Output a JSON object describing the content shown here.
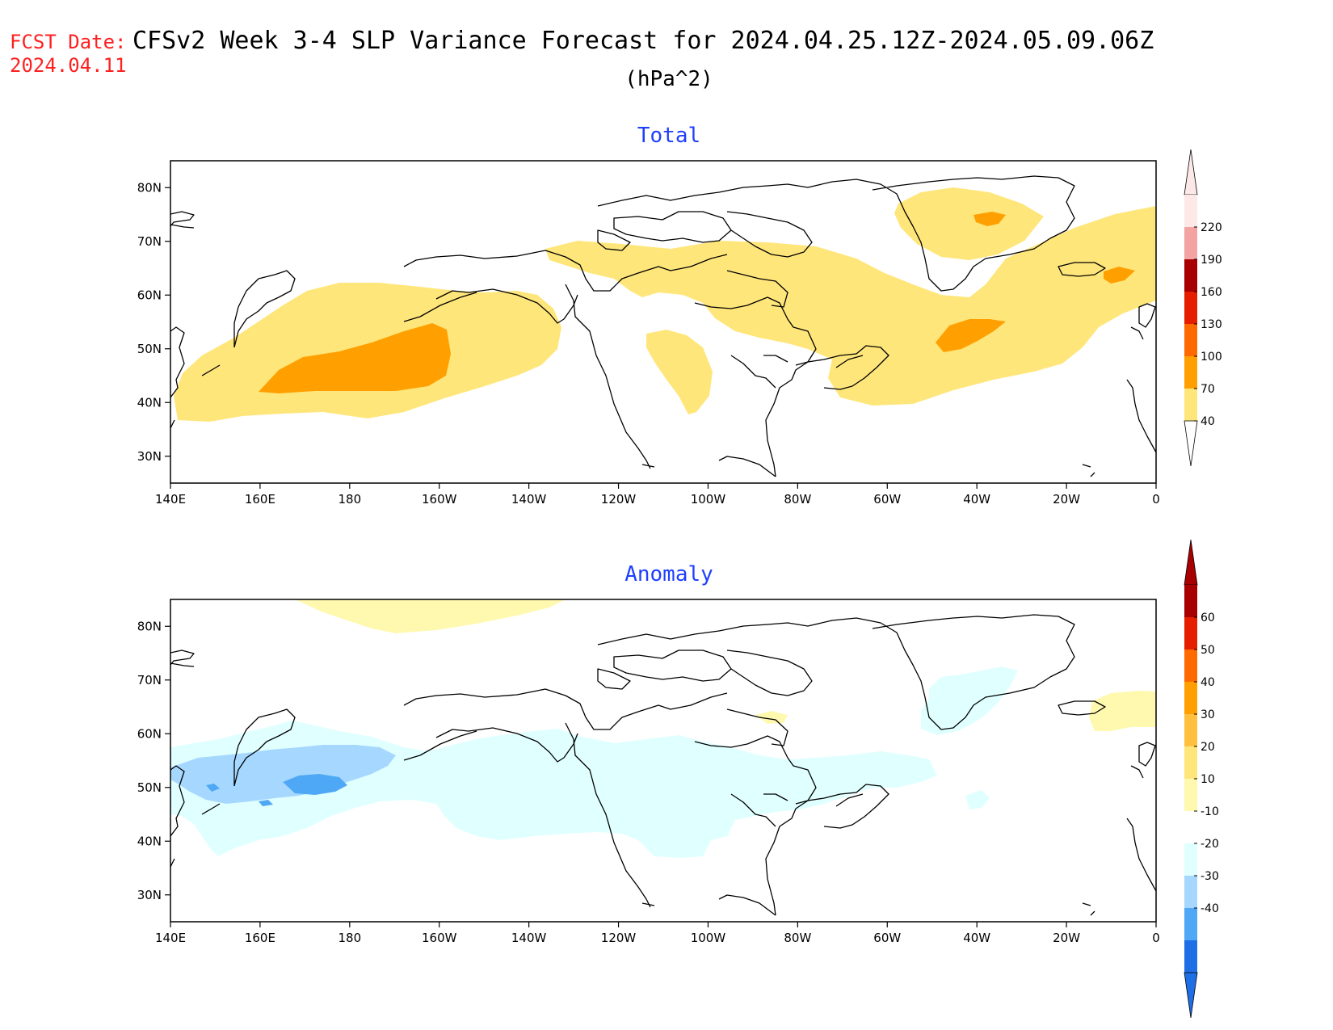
{
  "header": {
    "fcst_label": "FCST Date:",
    "fcst_date": "2024.04.11",
    "title": "CFSv2 Week 3-4 SLP Variance Forecast for 2024.04.25.12Z-2024.05.09.06Z",
    "units": "(hPa^2)",
    "fcst_color": "#ff2020",
    "panel_title_color": "#1f3fff"
  },
  "map": {
    "lon_labels": [
      "140E",
      "160E",
      "180",
      "160W",
      "140W",
      "120W",
      "100W",
      "80W",
      "60W",
      "40W",
      "20W",
      "0"
    ],
    "lat_labels": [
      "80N",
      "70N",
      "60N",
      "50N",
      "40N",
      "30N"
    ],
    "lon_range": [
      140,
      360
    ],
    "lat_range": [
      25,
      85
    ],
    "coastline": "black"
  },
  "panels": [
    {
      "title": "Total",
      "colorbar": {
        "labels": [
          "220",
          "190",
          "160",
          "130",
          "100",
          "70",
          "40"
        ],
        "colors": [
          "#fde8e8",
          "#f4a3a3",
          "#a80000",
          "#e61e00",
          "#ff6a00",
          "#ffa000",
          "#ffe67a"
        ],
        "below_color": "#ffffff"
      },
      "regions": [
        {
          "value_range": "40-70",
          "color": "#ffe67a",
          "area": "North Pacific 37N-62N, 140E-145W"
        },
        {
          "value_range": "70-100",
          "color": "#ffa000",
          "area": "North Pacific 42N-55N, 160E-163W"
        },
        {
          "value_range": "40-70",
          "color": "#ffe67a",
          "area": "Canada and North Atlantic 40N-68N"
        },
        {
          "value_range": "70-100",
          "color": "#ffa000",
          "area": "North Atlantic near 50N 45W"
        },
        {
          "value_range": "70-100",
          "color": "#ffa000",
          "area": "Greenland near 73N 40W"
        },
        {
          "value_range": "70-100",
          "color": "#ffa000",
          "area": "near Iceland 63N 10W"
        }
      ]
    },
    {
      "title": "Anomaly",
      "colorbar": {
        "labels": [
          "60",
          "50",
          "40",
          "30",
          "20",
          "10",
          "-10",
          "-20",
          "-30",
          "-40"
        ],
        "colors": [
          "#a80000",
          "#e61e00",
          "#ff6a00",
          "#ffa000",
          "#ffc040",
          "#ffe67a",
          "#fff9b0",
          "#ffffff",
          "#e0ffff",
          "#a6d8ff",
          "#4fa8f5",
          "#1e6ee6"
        ],
        "below_color": "#1e6ee6"
      },
      "regions": [
        {
          "value_range": "-20 to -10",
          "color": "#e0ffff",
          "area": "North Pacific and North America 35N-60N"
        },
        {
          "value_range": "-30 to -20",
          "color": "#a6d8ff",
          "area": "NW Pacific 44N-55N"
        },
        {
          "value_range": "-40 to -30",
          "color": "#4fa8f5",
          "area": "NW Pacific near 50N 170E"
        },
        {
          "value_range": "10 to 20",
          "color": "#fff9b0",
          "area": "Arctic 80N-85N"
        },
        {
          "value_range": "10 to 20",
          "color": "#fff9b0",
          "area": "NE Atlantic 60N-68N"
        }
      ]
    }
  ]
}
